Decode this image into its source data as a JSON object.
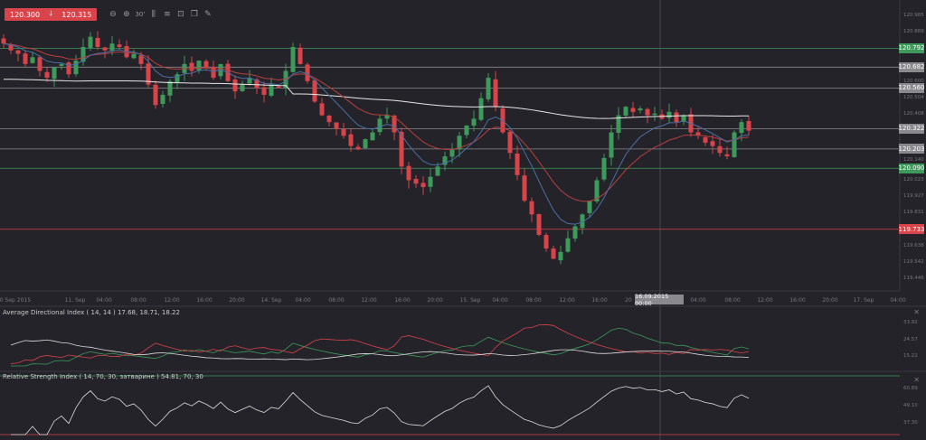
{
  "toolbar": {
    "bid": "120.300",
    "ask": "120.315",
    "direction_icon": "arrow-down",
    "buttons": [
      {
        "icon": "zoom-out-icon",
        "glyph": "⊖"
      },
      {
        "icon": "zoom-in-icon",
        "glyph": "⊕"
      },
      {
        "icon": "timeframe-icon",
        "glyph": "30'"
      },
      {
        "icon": "candles-icon",
        "glyph": "⫼"
      },
      {
        "icon": "indicators-icon",
        "glyph": "≡"
      },
      {
        "icon": "screenshot-icon",
        "glyph": "⊡"
      },
      {
        "icon": "copy-icon",
        "glyph": "❐"
      },
      {
        "icon": "draw-icon",
        "glyph": "✎"
      }
    ]
  },
  "colors": {
    "bull": "#3d9a5a",
    "bear": "#d9434a",
    "background": "#232329",
    "ma_white": "#e8e8e8",
    "ma_red": "#b8403f",
    "ma_blue": "#4a6fa5"
  },
  "price_axis": {
    "ticks": [
      "120.985",
      "120.889",
      "120.600",
      "120.504",
      "120.408",
      "120.140",
      "120.023",
      "119.927",
      "119.831",
      "119.638",
      "119.542",
      "119.446"
    ]
  },
  "levels": [
    {
      "price": "120.792",
      "color": "#3d9a5a"
    },
    {
      "price": "120.682",
      "color": "#8a8a8e"
    },
    {
      "price": "120.560",
      "color": "#8a8a8e"
    },
    {
      "price": "120.322",
      "color": "#8a8a8e"
    },
    {
      "price": "120.203",
      "color": "#8a8a8e"
    },
    {
      "price": "120.090",
      "color": "#3d9a5a"
    },
    {
      "price": "119.733",
      "color": "#d9434a"
    }
  ],
  "time_axis": {
    "labels": [
      "10 Sep 2015",
      "11. Sep",
      "04:00",
      "08:00",
      "12:00",
      "16:00",
      "20:00",
      "14. Sep",
      "04:00",
      "08:00",
      "12:00",
      "16:00",
      "20:00",
      "15. Sep",
      "04:00",
      "08:00",
      "12:00",
      "16:00",
      "20",
      "04:00",
      "08:00",
      "12:00",
      "16:00",
      "20:00",
      "17. Sep",
      "04:00"
    ],
    "crosshair": "16.09.2015 00:00"
  },
  "adx": {
    "title": "Average Directional Index ( 14, 14 ) 17.68, 18.71, 18.22",
    "ticks": [
      "33.92",
      "24.57",
      "15.22"
    ]
  },
  "rsi": {
    "title": "Relative Strength Index ( 14, 70, 30, затварине ) 54.81, 70, 30",
    "ticks": [
      "60.89",
      "49.10",
      "37.30"
    ]
  },
  "chart_data": {
    "type": "candlestick",
    "ylim": [
      119.446,
      120.985
    ],
    "close": [
      120.82,
      120.78,
      120.76,
      120.7,
      120.74,
      120.66,
      120.62,
      120.68,
      120.7,
      120.64,
      120.72,
      120.8,
      120.86,
      120.8,
      120.78,
      120.82,
      120.8,
      120.74,
      120.76,
      120.7,
      120.58,
      120.46,
      120.52,
      120.6,
      120.64,
      120.7,
      120.66,
      120.72,
      120.68,
      120.62,
      120.7,
      120.6,
      120.54,
      120.58,
      120.62,
      120.56,
      120.52,
      120.58,
      120.56,
      120.66,
      120.8,
      120.7,
      120.6,
      120.48,
      120.4,
      120.36,
      120.32,
      120.28,
      120.22,
      120.2,
      120.26,
      120.3,
      120.38,
      120.4,
      120.3,
      120.1,
      120.02,
      120.0,
      119.98,
      120.04,
      120.1,
      120.16,
      120.2,
      120.28,
      120.34,
      120.38,
      120.5,
      120.62,
      120.45,
      120.3,
      120.18,
      120.05,
      119.9,
      119.82,
      119.7,
      119.62,
      119.56,
      119.6,
      119.68,
      119.75,
      119.82,
      119.9,
      120.02,
      120.15,
      120.3,
      120.4,
      120.45,
      120.42,
      120.44,
      120.4,
      120.41,
      120.38,
      120.42,
      120.36,
      120.4,
      120.3,
      120.28,
      120.24,
      120.22,
      120.18,
      120.16,
      120.3,
      120.36,
      120.31
    ]
  }
}
